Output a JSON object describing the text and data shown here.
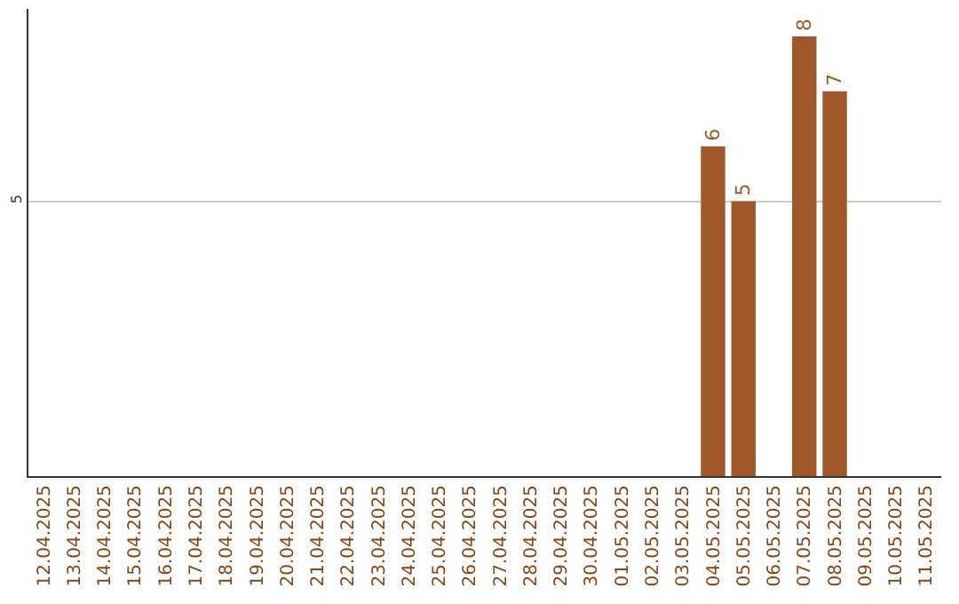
{
  "chart_data": {
    "type": "bar",
    "categories": [
      "12.04.2025",
      "13.04.2025",
      "14.04.2025",
      "15.04.2025",
      "16.04.2025",
      "17.04.2025",
      "18.04.2025",
      "19.04.2025",
      "20.04.2025",
      "21.04.2025",
      "22.04.2025",
      "23.04.2025",
      "24.04.2025",
      "25.04.2025",
      "26.04.2025",
      "27.04.2025",
      "28.04.2025",
      "29.04.2025",
      "30.04.2025",
      "01.05.2025",
      "02.05.2025",
      "03.05.2025",
      "04.05.2025",
      "05.05.2025",
      "06.05.2025",
      "07.05.2025",
      "08.05.2025",
      "09.05.2025",
      "10.05.2025",
      "11.05.2025"
    ],
    "values": [
      null,
      null,
      null,
      null,
      null,
      null,
      null,
      null,
      null,
      null,
      null,
      null,
      null,
      null,
      null,
      null,
      null,
      null,
      null,
      null,
      null,
      null,
      6,
      5,
      null,
      8,
      7,
      null,
      null,
      null
    ],
    "color": "#a0572a",
    "ylim": [
      0,
      8.5
    ],
    "yticks": [
      5
    ],
    "grid": "y",
    "data_labels": true,
    "legend": false
  }
}
